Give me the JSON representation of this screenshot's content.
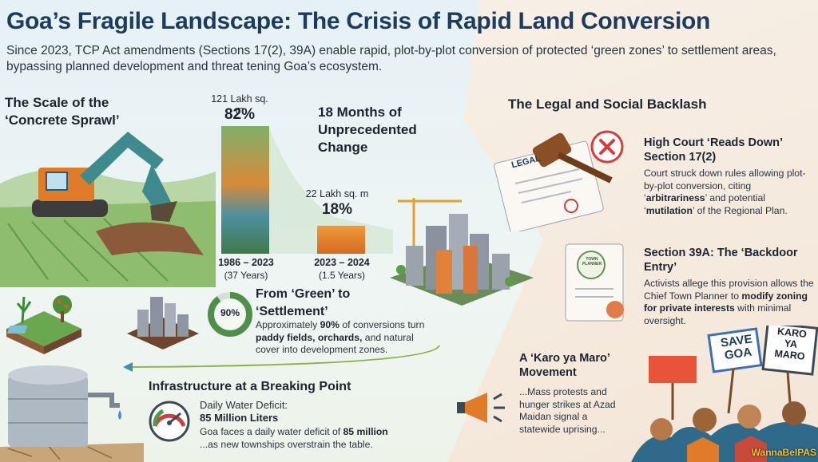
{
  "title": "Goa’s Fragile Landscape: The Crisis of Rapid Land Conversion",
  "subtitle": "Since 2023, TCP Act amendments (Sections 17(2), 39A) enable rapid, plot-by-plot conversion of protected ‘green zones’ to settlement areas, bypassing planned development and threat tening Goa’s ecosystem.",
  "scale": {
    "heading": "The Scale of the ‘Concrete Sprawl’",
    "change_heading": "18 Months of Unprecedented Change",
    "bar1": {
      "area": "121 Lakh sq. m",
      "percent": "82%",
      "period": "1986 – 2023",
      "duration": "(37 Years)"
    },
    "bar2": {
      "area": "22 Lakh sq. m",
      "percent": "18%",
      "period": "2023 – 2024",
      "duration": "(1.5 Years)"
    }
  },
  "chart_data": {
    "type": "bar",
    "categories": [
      "1986 – 2023",
      "2023 – 2024"
    ],
    "values": [
      82,
      18
    ],
    "value_labels": [
      "121 Lakh sq. m",
      "22 Lakh sq. m"
    ]
  },
  "green": {
    "heading": "From ‘Green’ to ‘Settlement’",
    "gauge_label": "90%",
    "gauge_value": 0.9,
    "text_a": "Approximately ",
    "text_b": "90%",
    "text_c": " of conversions turn ",
    "text_d": "paddy fields, orchards,",
    "text_e": " and natural cover into development zones."
  },
  "infra": {
    "heading": "Infrastructure at a Breaking Point",
    "label": "Daily Water Deficit:",
    "value": "85 Million Liters",
    "text_a": "Goa faces a daily water deficit of ",
    "text_b": "85 million",
    "text_c": "...as new townships overstrain the table."
  },
  "legal": {
    "heading": "The Legal and Social Backlash",
    "doc_label": "LEGAL",
    "court_heading": "High Court ‘Reads Down’ Section 17(2)",
    "court_a": "Court struck down rules allowing plot-by-plot conversion, citing ‘",
    "court_b": "arbitrariness",
    "court_c": "’ and potential ‘",
    "court_d": "mutilation",
    "court_e": "’ of the Regional Plan.",
    "s39_heading": "Section 39A: The ‘Backdoor Entry’",
    "s39_a": "Activists allege this provision allows the Chief Town Planner to ",
    "s39_b": "modify zoning for private interests",
    "s39_c": " with minimal oversight.",
    "stamp_text": "TOWN PLANNER"
  },
  "movement": {
    "heading": "A ‘Karo ya Maro’ Movement",
    "text": "...Mass protests and hunger strikes at Azad Maidan signal a statewide uprising...",
    "sign1_line1": "SAVE",
    "sign1_line2": "GOA",
    "sign2_line1": "KARO",
    "sign2_line2": "YA",
    "sign2_line3": "MARO"
  },
  "watermark": "WannaBeIPAS",
  "colors": {
    "title": "#1c3b5e",
    "bar_green": "#5b9a5a",
    "bar_orange": "#e58a36",
    "alert_red": "#d83b3b"
  }
}
